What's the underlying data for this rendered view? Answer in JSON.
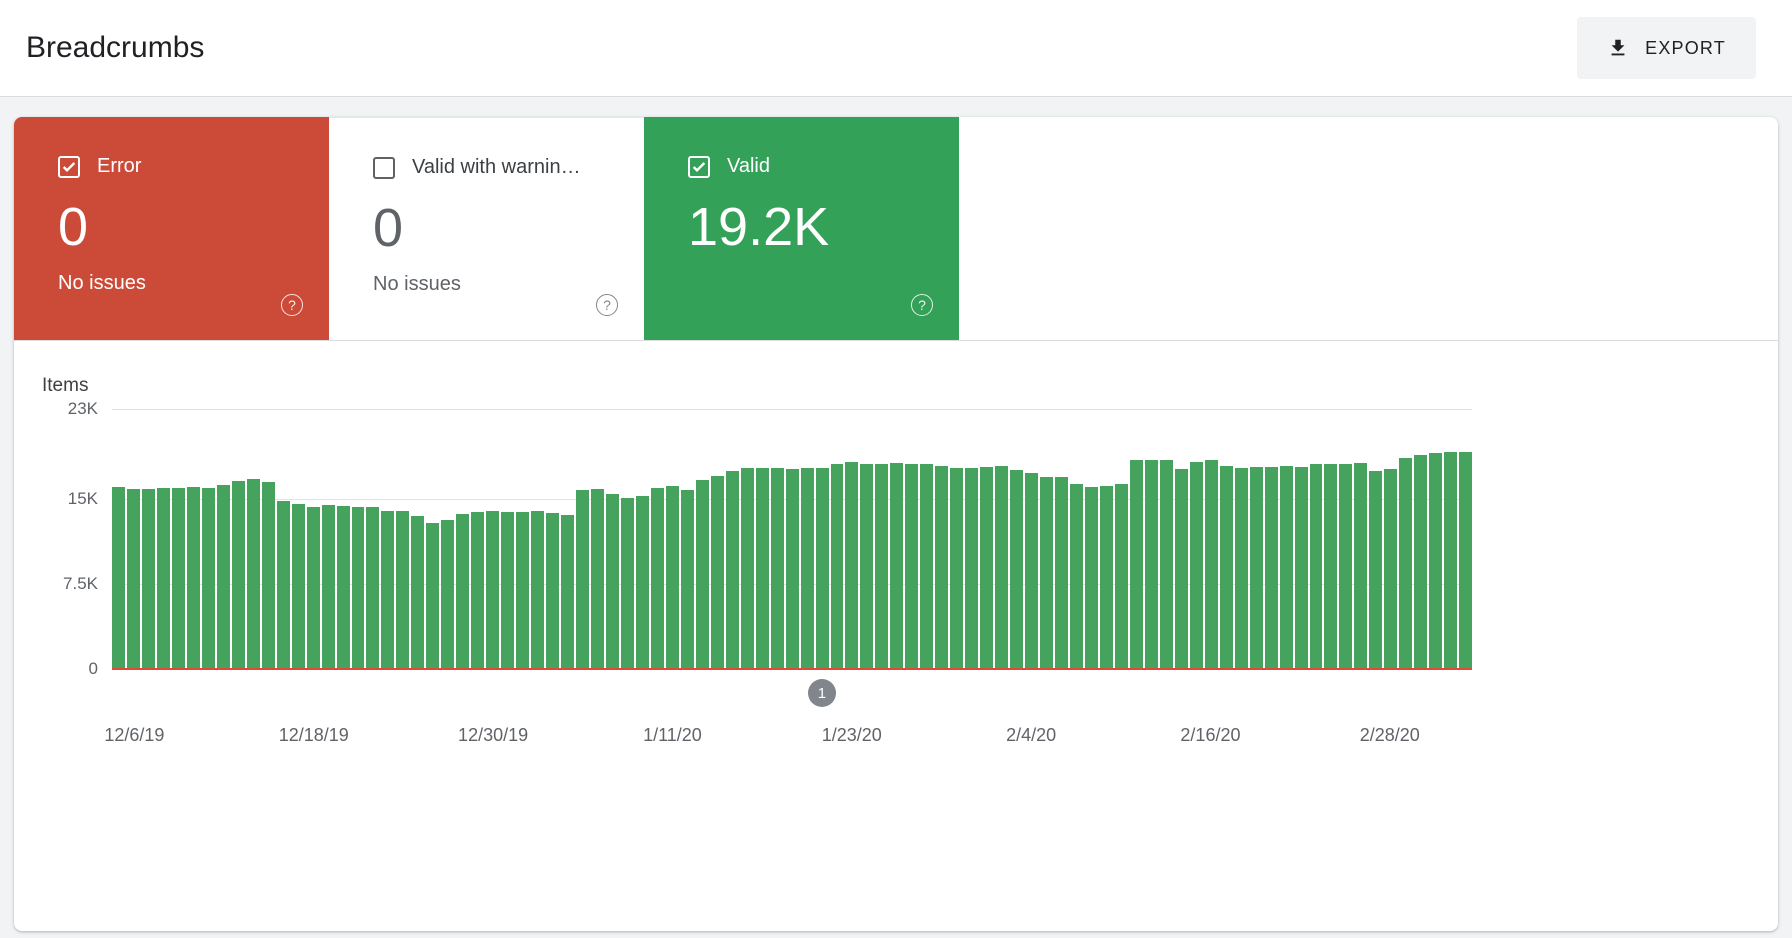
{
  "header": {
    "title": "Breadcrumbs",
    "export_label": "EXPORT"
  },
  "summary": {
    "error": {
      "label": "Error",
      "count": "0",
      "subtitle": "No issues",
      "checked": true,
      "color": "#cb4a38"
    },
    "warning": {
      "label": "Valid with warnin…",
      "count": "0",
      "subtitle": "No issues",
      "checked": false,
      "color": "#ffffff"
    },
    "valid": {
      "label": "Valid",
      "count": "19.2K",
      "checked": true,
      "color": "#34a159"
    }
  },
  "colors": {
    "bar_green": "#46a35e",
    "error_line_red": "#e04a3a",
    "marker_gray": "#80868b",
    "gridline": "#e3e3e3"
  },
  "chart_data": {
    "type": "bar",
    "title": "Items",
    "ylabel": "Items",
    "xlabel": "",
    "ylim": [
      0,
      23000
    ],
    "grid": true,
    "legend": "none",
    "y_ticks": [
      {
        "label": "23K",
        "value": 23000
      },
      {
        "label": "15K",
        "value": 15000
      },
      {
        "label": "7.5K",
        "value": 7500
      },
      {
        "label": "0",
        "value": 0
      }
    ],
    "x_ticks": [
      {
        "label": "12/6/19",
        "index": 1
      },
      {
        "label": "12/18/19",
        "index": 13
      },
      {
        "label": "12/30/19",
        "index": 25
      },
      {
        "label": "1/11/20",
        "index": 37
      },
      {
        "label": "1/23/20",
        "index": 49
      },
      {
        "label": "2/4/20",
        "index": 61
      },
      {
        "label": "2/16/20",
        "index": 73
      },
      {
        "label": "2/28/20",
        "index": 85
      }
    ],
    "x_dates": [
      "12/5/19",
      "12/6/19",
      "12/7/19",
      "12/8/19",
      "12/9/19",
      "12/10/19",
      "12/11/19",
      "12/12/19",
      "12/13/19",
      "12/14/19",
      "12/15/19",
      "12/16/19",
      "12/17/19",
      "12/18/19",
      "12/19/19",
      "12/20/19",
      "12/21/19",
      "12/22/19",
      "12/23/19",
      "12/24/19",
      "12/25/19",
      "12/26/19",
      "12/27/19",
      "12/28/19",
      "12/29/19",
      "12/30/19",
      "12/31/19",
      "1/1/20",
      "1/2/20",
      "1/3/20",
      "1/4/20",
      "1/5/20",
      "1/6/20",
      "1/7/20",
      "1/8/20",
      "1/9/20",
      "1/10/20",
      "1/11/20",
      "1/12/20",
      "1/13/20",
      "1/14/20",
      "1/15/20",
      "1/16/20",
      "1/17/20",
      "1/18/20",
      "1/19/20",
      "1/20/20",
      "1/21/20",
      "1/22/20",
      "1/23/20",
      "1/24/20",
      "1/25/20",
      "1/26/20",
      "1/27/20",
      "1/28/20",
      "1/29/20",
      "1/30/20",
      "1/31/20",
      "2/1/20",
      "2/2/20",
      "2/3/20",
      "2/4/20",
      "2/5/20",
      "2/6/20",
      "2/7/20",
      "2/8/20",
      "2/9/20",
      "2/10/20",
      "2/11/20",
      "2/12/20",
      "2/13/20",
      "2/14/20",
      "2/15/20",
      "2/16/20",
      "2/17/20",
      "2/18/20",
      "2/19/20",
      "2/20/20",
      "2/21/20",
      "2/22/20",
      "2/23/20",
      "2/24/20",
      "2/25/20",
      "2/26/20",
      "2/27/20",
      "2/28/20",
      "2/29/20",
      "3/1/20",
      "3/2/20",
      "3/3/20",
      "3/4/20"
    ],
    "series": [
      {
        "name": "Valid",
        "color": "#46a35e",
        "values": [
          16100,
          15900,
          15900,
          16000,
          16000,
          16100,
          16000,
          16300,
          16600,
          16800,
          16500,
          14900,
          14600,
          14300,
          14500,
          14400,
          14300,
          14300,
          14000,
          14000,
          13500,
          12900,
          13200,
          13700,
          13900,
          14000,
          13900,
          13900,
          14000,
          13800,
          13600,
          15800,
          15900,
          15500,
          15100,
          15300,
          16000,
          16200,
          15800,
          16700,
          17100,
          17500,
          17800,
          17800,
          17800,
          17700,
          17800,
          17800,
          18100,
          18300,
          18100,
          18100,
          18200,
          18100,
          18100,
          18000,
          17800,
          17800,
          17900,
          18000,
          17600,
          17300,
          17000,
          17000,
          16400,
          16100,
          16200,
          16400,
          18500,
          18500,
          18500,
          17700,
          18300,
          18500,
          18000,
          17800,
          17900,
          17900,
          18000,
          17900,
          18100,
          18100,
          18100,
          18200,
          17500,
          17700,
          18700,
          18900,
          19100,
          19200,
          19200
        ]
      },
      {
        "name": "Error",
        "color": "#e04a3a",
        "constant_value": 0
      }
    ],
    "annotation_marker": {
      "label": "1",
      "date": "1/21/20",
      "index": 47
    }
  }
}
